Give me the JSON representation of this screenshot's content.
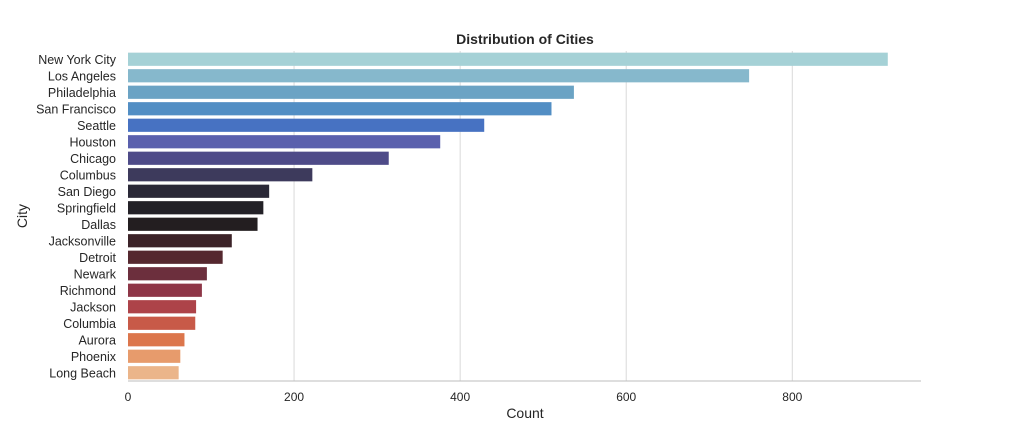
{
  "chart_data": {
    "type": "bar",
    "orientation": "horizontal",
    "title": "Distribution of Cities",
    "xlabel": "Count",
    "ylabel": "City",
    "xlim": [
      0,
      955
    ],
    "xticks": [
      0,
      200,
      400,
      600,
      800
    ],
    "grid": "x-major",
    "categories": [
      "New York City",
      "Los Angeles",
      "Philadelphia",
      "San Francisco",
      "Seattle",
      "Houston",
      "Chicago",
      "Columbus",
      "San Diego",
      "Springfield",
      "Dallas",
      "Jacksonville",
      "Detroit",
      "Newark",
      "Richmond",
      "Jackson",
      "Columbia",
      "Aurora",
      "Phoenix",
      "Long Beach"
    ],
    "values": [
      915,
      748,
      537,
      510,
      429,
      376,
      314,
      222,
      170,
      163,
      156,
      125,
      114,
      95,
      89,
      82,
      81,
      68,
      63,
      61
    ],
    "colors": [
      "#a5d1d6",
      "#86b8cc",
      "#6ba3c4",
      "#528ec4",
      "#4772c2",
      "#5a60ad",
      "#4e4b88",
      "#3d3a5c",
      "#2a2837",
      "#232127",
      "#231e20",
      "#3c2328",
      "#55282f",
      "#6c2f3d",
      "#8e3647",
      "#ad4349",
      "#c85a48",
      "#dc764c",
      "#e79b6c",
      "#ebb58a"
    ]
  }
}
